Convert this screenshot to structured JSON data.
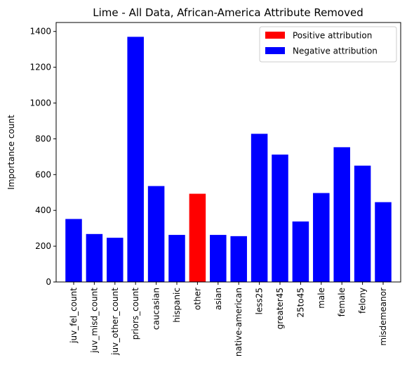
{
  "chart_data": {
    "type": "bar",
    "title": "Lime - All Data, African-America Attribute Removed",
    "xlabel": "",
    "ylabel": "Importance count",
    "ylim": [
      0,
      1450
    ],
    "yticks": [
      0,
      200,
      400,
      600,
      800,
      1000,
      1200,
      1400
    ],
    "grid": false,
    "legend_position": "top-right",
    "categories": [
      "juv_fel_count",
      "juv_misd_count",
      "juv_other_count",
      "priors_count",
      "caucasian",
      "hispanic",
      "other",
      "asian",
      "native-american",
      "less25",
      "greater45",
      "25to45",
      "male",
      "female",
      "felony",
      "misdemeanor"
    ],
    "values": [
      352,
      268,
      247,
      1370,
      536,
      263,
      493,
      263,
      256,
      828,
      712,
      338,
      497,
      753,
      650,
      446
    ],
    "attribution": [
      "negative",
      "negative",
      "negative",
      "negative",
      "negative",
      "negative",
      "positive",
      "negative",
      "negative",
      "negative",
      "negative",
      "negative",
      "negative",
      "negative",
      "negative",
      "negative"
    ],
    "legend": [
      {
        "label": "Positive attribution",
        "key": "positive",
        "color": "#ff0000"
      },
      {
        "label": "Negative attribution",
        "key": "negative",
        "color": "#0000ff"
      }
    ]
  }
}
